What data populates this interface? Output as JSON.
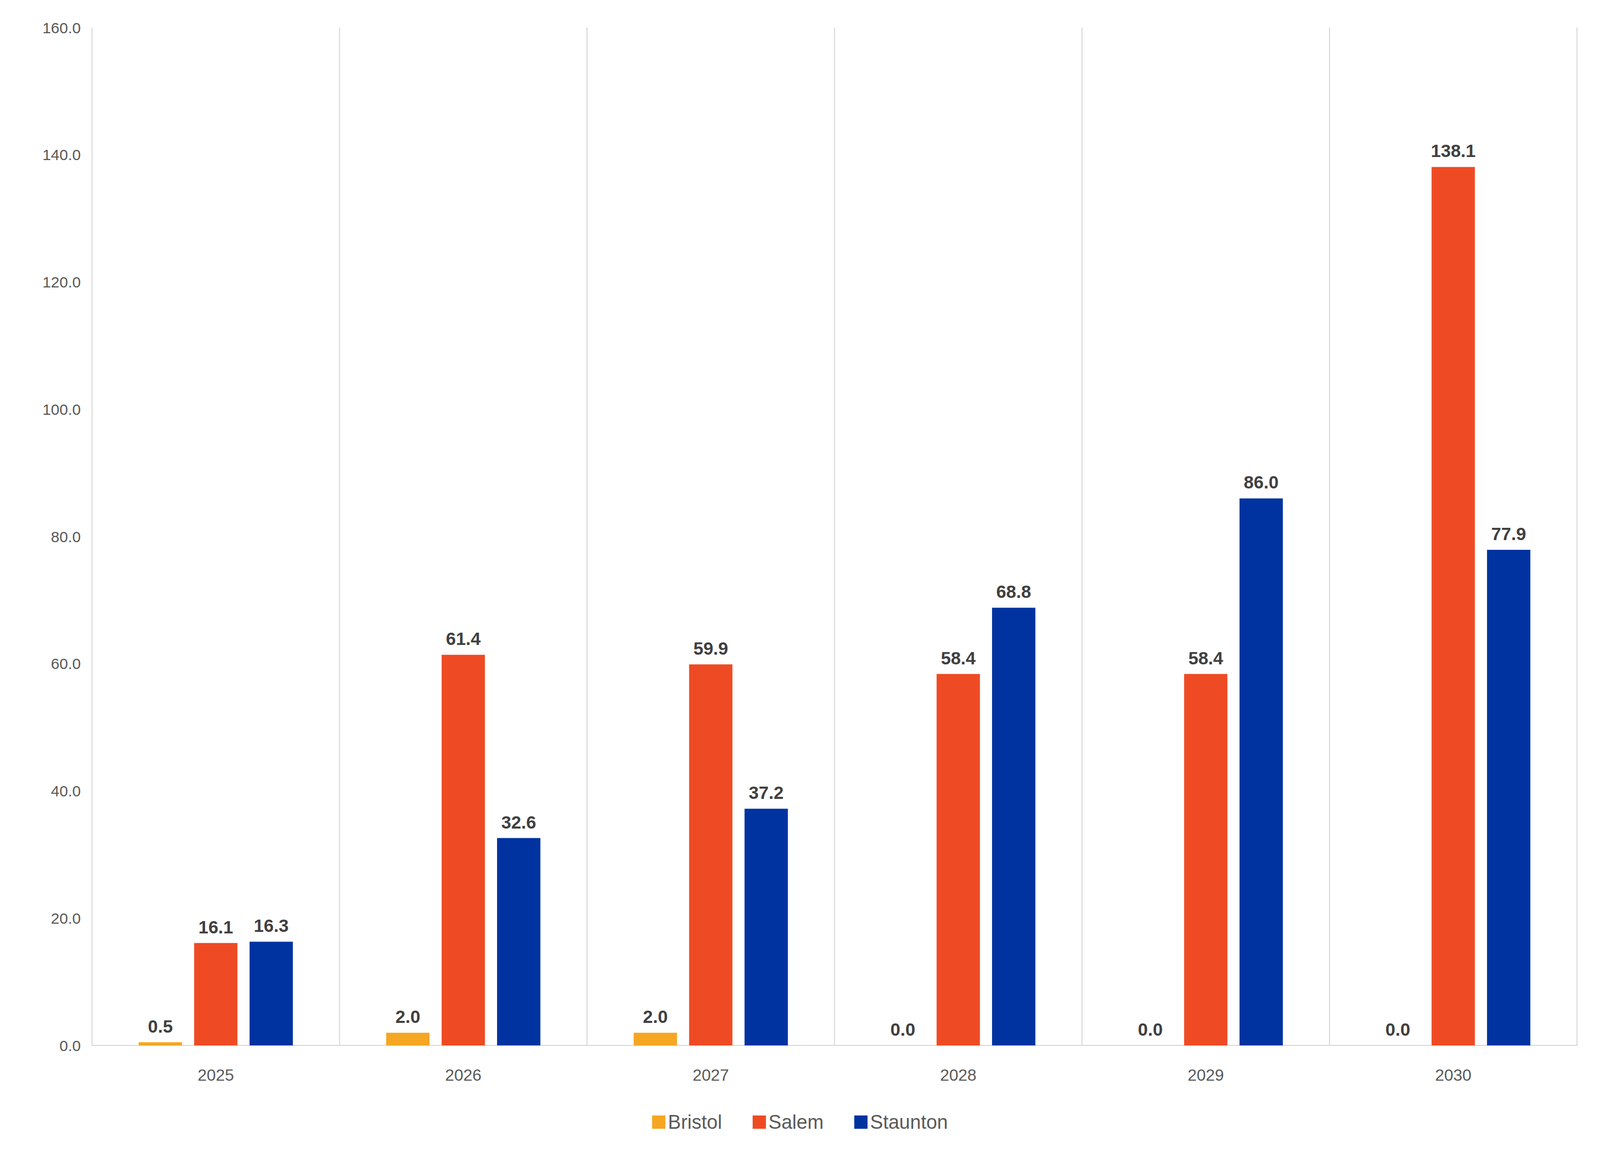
{
  "chart_data": {
    "type": "bar",
    "categories": [
      "2025",
      "2026",
      "2027",
      "2028",
      "2029",
      "2030"
    ],
    "series": [
      {
        "name": "Bristol",
        "color": "#F5A623",
        "values": [
          0.5,
          2.0,
          2.0,
          0.0,
          0.0,
          0.0
        ],
        "value_labels": [
          "0.5",
          "2.0",
          "2.0",
          "0.0",
          "0.0",
          "0.0"
        ]
      },
      {
        "name": "Salem",
        "color": "#EE4B24",
        "values": [
          16.1,
          61.4,
          59.9,
          58.4,
          58.4,
          138.1
        ],
        "value_labels": [
          "16.1",
          "61.4",
          "59.9",
          "58.4",
          "58.4",
          "138.1"
        ]
      },
      {
        "name": "Staunton",
        "color": "#0033A0",
        "values": [
          16.3,
          32.6,
          37.2,
          68.8,
          86.0,
          77.9
        ],
        "value_labels": [
          "16.3",
          "32.6",
          "37.2",
          "68.8",
          "86.0",
          "77.9"
        ]
      }
    ],
    "ylim": [
      0,
      160
    ],
    "yticks": [
      {
        "value": 0,
        "label": "0.0"
      },
      {
        "value": 20,
        "label": "20.0"
      },
      {
        "value": 40,
        "label": "40.0"
      },
      {
        "value": 60,
        "label": "60.0"
      },
      {
        "value": 80,
        "label": "80.0"
      },
      {
        "value": 100,
        "label": "100.0"
      },
      {
        "value": 120,
        "label": "120.0"
      },
      {
        "value": 140,
        "label": "140.0"
      },
      {
        "value": 160,
        "label": "160.0"
      }
    ],
    "grid": true,
    "legend": "bottom",
    "data_labels": true
  }
}
